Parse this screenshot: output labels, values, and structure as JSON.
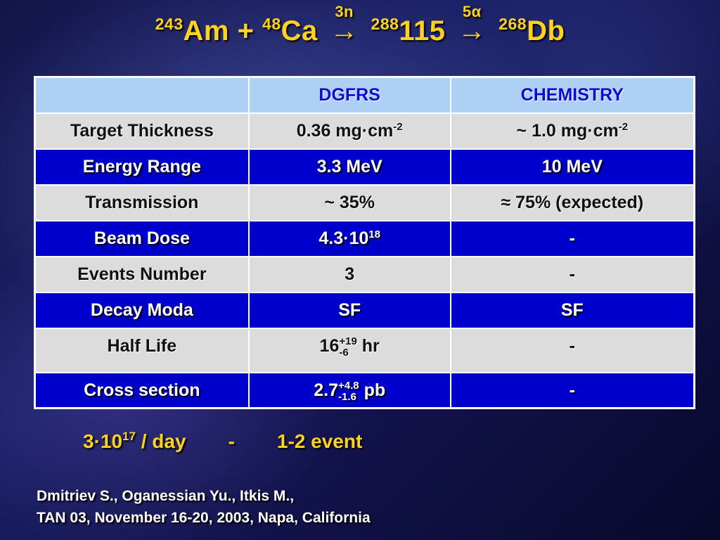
{
  "title": {
    "m1": "243",
    "e1": "Am",
    "plus": "+",
    "m2": "48",
    "e2": "Ca",
    "arrow1_label": "3n",
    "arrow": "→",
    "m3": "288",
    "e3": "115",
    "arrow2_label": "5α",
    "m4": "268",
    "e4": "Db"
  },
  "table": {
    "headers": [
      "",
      "DGFRS",
      "CHEMISTRY"
    ],
    "rows": [
      {
        "label": "Target Thickness",
        "dgfrs_base": "0.36 mg·cm",
        "dgfrs_exp": "-2",
        "chem_base": "~ 1.0 mg·cm",
        "chem_exp": "-2"
      },
      {
        "label": "Energy Range",
        "dgfrs": "3.3 MeV",
        "chem": "10 MeV"
      },
      {
        "label": "Transmission",
        "dgfrs": "~ 35%",
        "chem": "≈ 75% (expected)"
      },
      {
        "label": "Beam Dose",
        "dgfrs_base": "4.3·10",
        "dgfrs_exp": "18",
        "chem": "-"
      },
      {
        "label": "Events Number",
        "dgfrs": "3",
        "chem": "-"
      },
      {
        "label": "Decay Moda",
        "dgfrs": "SF",
        "chem": "SF"
      },
      {
        "label": "Half Life",
        "dgfrs_value": "16",
        "dgfrs_plus": "+19",
        "dgfrs_minus": "-6",
        "dgfrs_unit": "hr",
        "chem": "-"
      },
      {
        "label": "Cross section",
        "dgfrs_value": "2.7",
        "dgfrs_plus": "+4.8",
        "dgfrs_minus": "-1.6",
        "dgfrs_unit": "pb",
        "chem": "-"
      }
    ]
  },
  "note": {
    "rate_base": "3·10",
    "rate_exp": "17",
    "rate_unit": "/ day",
    "dash": "-",
    "events": "1-2 event"
  },
  "reference": {
    "line1": "Dmitriev S., Oganessian Yu., Itkis M.,",
    "line2": "TAN 03, November 16-20, 2003, Napa, California"
  },
  "colors": {
    "title": "#ffd21f",
    "header_bg": "#aed0f5",
    "header_text": "#0b0bd4",
    "light_row": "#dcdcdc",
    "blue_row": "#0000cc"
  }
}
